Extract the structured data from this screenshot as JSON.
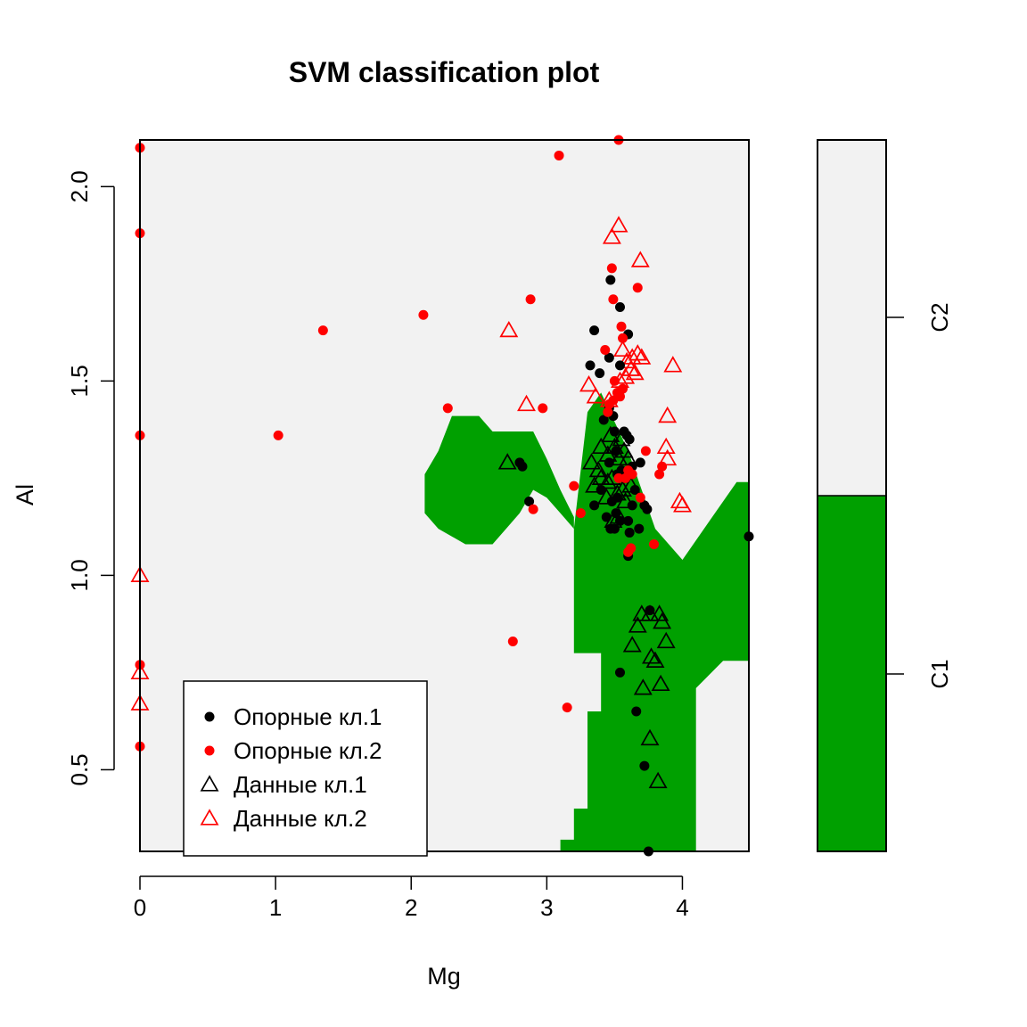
{
  "chart_data": {
    "type": "scatter",
    "title": "SVM classification plot",
    "xlabel": "Mg",
    "ylabel": "Al",
    "xlim": [
      0,
      4.49
    ],
    "ylim": [
      0.29,
      2.12
    ],
    "xticks": [
      {
        "v": 0,
        "label": "0"
      },
      {
        "v": 1,
        "label": "1"
      },
      {
        "v": 2,
        "label": "2"
      },
      {
        "v": 3,
        "label": "3"
      },
      {
        "v": 4,
        "label": "4"
      }
    ],
    "yticks": [
      {
        "v": 0.5,
        "label": "0.5"
      },
      {
        "v": 1.0,
        "label": "1.0"
      },
      {
        "v": 1.5,
        "label": "1.5"
      },
      {
        "v": 2.0,
        "label": "2.0"
      }
    ],
    "colors": {
      "class1_region": "#00a000",
      "class2_region": "#f2f2f2",
      "class1_points": "#000000",
      "class2_points": "#ff0000"
    },
    "decision_region_class1": [
      [
        3.1,
        0.29
      ],
      [
        3.1,
        0.32
      ],
      [
        3.2,
        0.32
      ],
      [
        3.2,
        0.4
      ],
      [
        3.3,
        0.4
      ],
      [
        3.3,
        0.65
      ],
      [
        3.4,
        0.65
      ],
      [
        3.4,
        0.8
      ],
      [
        3.2,
        0.8
      ],
      [
        3.2,
        1.0
      ],
      [
        3.2,
        1.15
      ],
      [
        3.1,
        1.22
      ],
      [
        3.0,
        1.3
      ],
      [
        2.9,
        1.37
      ],
      [
        2.6,
        1.37
      ],
      [
        2.5,
        1.41
      ],
      [
        2.3,
        1.41
      ],
      [
        2.2,
        1.32
      ],
      [
        2.1,
        1.26
      ],
      [
        2.1,
        1.16
      ],
      [
        2.2,
        1.12
      ],
      [
        2.4,
        1.08
      ],
      [
        2.6,
        1.08
      ],
      [
        2.7,
        1.12
      ],
      [
        2.8,
        1.16
      ],
      [
        2.9,
        1.22
      ],
      [
        3.0,
        1.2
      ],
      [
        3.1,
        1.16
      ],
      [
        3.2,
        1.12
      ],
      [
        3.3,
        1.42
      ],
      [
        3.4,
        1.47
      ],
      [
        3.6,
        1.32
      ],
      [
        3.8,
        1.12
      ],
      [
        4.0,
        1.04
      ],
      [
        4.2,
        1.14
      ],
      [
        4.4,
        1.24
      ],
      [
        4.49,
        1.24
      ],
      [
        4.49,
        0.78
      ],
      [
        4.3,
        0.78
      ],
      [
        4.1,
        0.71
      ],
      [
        4.1,
        0.29
      ]
    ],
    "legend": [
      {
        "label": "Опорные кл.1",
        "shape": "dot",
        "class": 1
      },
      {
        "label": "Опорные кл.2",
        "shape": "dot",
        "class": 2
      },
      {
        "label": "Данные кл.1",
        "shape": "triangle",
        "class": 1
      },
      {
        "label": "Данные кл.2",
        "shape": "triangle",
        "class": 2
      }
    ],
    "legend_position": "bottom-left",
    "colorbar": {
      "labels": [
        {
          "label": "C2",
          "class": 2
        },
        {
          "label": "C1",
          "class": 1
        }
      ],
      "split_fraction": 0.5
    },
    "series": [
      {
        "name": "Опорные кл.1",
        "shape": "dot",
        "class": 1,
        "points": [
          [
            3.47,
            1.76
          ],
          [
            3.54,
            1.69
          ],
          [
            3.6,
            1.62
          ],
          [
            3.35,
            1.63
          ],
          [
            3.32,
            1.54
          ],
          [
            3.39,
            1.52
          ],
          [
            3.46,
            1.56
          ],
          [
            3.54,
            1.54
          ],
          [
            3.42,
            1.4
          ],
          [
            3.46,
            1.43
          ],
          [
            3.49,
            1.41
          ],
          [
            3.5,
            1.37
          ],
          [
            3.57,
            1.37
          ],
          [
            3.59,
            1.36
          ],
          [
            3.61,
            1.35
          ],
          [
            3.51,
            1.32
          ],
          [
            3.46,
            1.29
          ],
          [
            3.52,
            1.26
          ],
          [
            3.55,
            1.27
          ],
          [
            3.63,
            1.28
          ],
          [
            3.65,
            1.22
          ],
          [
            3.63,
            1.18
          ],
          [
            3.72,
            1.18
          ],
          [
            3.74,
            1.17
          ],
          [
            3.69,
            1.29
          ],
          [
            3.58,
            1.25
          ],
          [
            3.52,
            1.2
          ],
          [
            3.48,
            1.19
          ],
          [
            3.44,
            1.15
          ],
          [
            3.35,
            1.18
          ],
          [
            3.4,
            1.22
          ],
          [
            3.51,
            1.16
          ],
          [
            3.6,
            1.14
          ],
          [
            3.61,
            1.11
          ],
          [
            3.68,
            1.12
          ],
          [
            3.47,
            1.12
          ],
          [
            3.5,
            1.12
          ],
          [
            3.54,
            1.14
          ],
          [
            3.6,
            1.05
          ],
          [
            2.8,
            1.29
          ],
          [
            2.82,
            1.28
          ],
          [
            2.87,
            1.19
          ],
          [
            4.49,
            1.1
          ],
          [
            3.76,
            0.91
          ],
          [
            3.54,
            0.75
          ],
          [
            3.66,
            0.65
          ],
          [
            3.72,
            0.51
          ],
          [
            3.75,
            0.29
          ]
        ]
      },
      {
        "name": "Опорные кл.2",
        "shape": "dot",
        "class": 2,
        "points": [
          [
            0.0,
            2.1
          ],
          [
            0.0,
            1.88
          ],
          [
            0.0,
            1.36
          ],
          [
            0.0,
            0.77
          ],
          [
            0.0,
            0.56
          ],
          [
            1.35,
            1.63
          ],
          [
            1.02,
            1.36
          ],
          [
            2.09,
            1.67
          ],
          [
            2.27,
            1.43
          ],
          [
            2.88,
            1.71
          ],
          [
            2.97,
            1.43
          ],
          [
            3.09,
            2.08
          ],
          [
            3.53,
            2.12
          ],
          [
            3.48,
            1.79
          ],
          [
            3.49,
            1.71
          ],
          [
            3.67,
            1.74
          ],
          [
            3.55,
            1.64
          ],
          [
            3.56,
            1.61
          ],
          [
            3.43,
            1.58
          ],
          [
            3.5,
            1.5
          ],
          [
            3.52,
            1.47
          ],
          [
            3.56,
            1.48
          ],
          [
            3.54,
            1.46
          ],
          [
            3.46,
            1.44
          ],
          [
            3.49,
            1.45
          ],
          [
            3.45,
            1.42
          ],
          [
            3.73,
            1.32
          ],
          [
            3.6,
            1.27
          ],
          [
            3.63,
            1.26
          ],
          [
            3.58,
            1.25
          ],
          [
            3.53,
            1.25
          ],
          [
            3.85,
            1.28
          ],
          [
            3.83,
            1.26
          ],
          [
            3.2,
            1.23
          ],
          [
            3.25,
            1.16
          ],
          [
            2.9,
            1.17
          ],
          [
            3.69,
            1.2
          ],
          [
            3.62,
            1.07
          ],
          [
            3.6,
            1.06
          ],
          [
            3.79,
            1.08
          ],
          [
            2.75,
            0.83
          ],
          [
            3.15,
            0.66
          ]
        ]
      },
      {
        "name": "Данные кл.1",
        "shape": "triangle",
        "class": 1,
        "points": [
          [
            2.71,
            1.29
          ],
          [
            3.33,
            1.29
          ],
          [
            3.38,
            1.27
          ],
          [
            3.45,
            1.31
          ],
          [
            3.5,
            1.33
          ],
          [
            3.55,
            1.35
          ],
          [
            3.53,
            1.3
          ],
          [
            3.48,
            1.25
          ],
          [
            3.4,
            1.25
          ],
          [
            3.35,
            1.23
          ],
          [
            3.44,
            1.2
          ],
          [
            3.56,
            1.22
          ],
          [
            3.6,
            1.3
          ],
          [
            3.62,
            1.23
          ],
          [
            3.53,
            1.15
          ],
          [
            3.49,
            1.14
          ],
          [
            3.45,
            1.24
          ],
          [
            3.52,
            1.21
          ],
          [
            3.58,
            1.19
          ],
          [
            3.4,
            1.33
          ],
          [
            3.47,
            1.36
          ],
          [
            3.57,
            1.32
          ],
          [
            3.7,
            0.9
          ],
          [
            3.76,
            0.9
          ],
          [
            3.83,
            0.9
          ],
          [
            3.85,
            0.88
          ],
          [
            3.67,
            0.87
          ],
          [
            3.63,
            0.82
          ],
          [
            3.77,
            0.79
          ],
          [
            3.8,
            0.78
          ],
          [
            3.88,
            0.83
          ],
          [
            3.71,
            0.71
          ],
          [
            3.84,
            0.72
          ],
          [
            3.76,
            0.58
          ],
          [
            3.82,
            0.47
          ]
        ]
      },
      {
        "name": "Данные кл.2",
        "shape": "triangle",
        "class": 2,
        "points": [
          [
            3.53,
            1.9
          ],
          [
            3.48,
            1.87
          ],
          [
            3.69,
            1.81
          ],
          [
            2.72,
            1.63
          ],
          [
            3.56,
            1.58
          ],
          [
            3.63,
            1.56
          ],
          [
            3.67,
            1.57
          ],
          [
            3.7,
            1.56
          ],
          [
            3.59,
            1.55
          ],
          [
            3.62,
            1.53
          ],
          [
            3.65,
            1.52
          ],
          [
            3.93,
            1.54
          ],
          [
            3.58,
            1.51
          ],
          [
            3.54,
            1.5
          ],
          [
            3.31,
            1.49
          ],
          [
            3.36,
            1.46
          ],
          [
            2.85,
            1.44
          ],
          [
            3.46,
            1.45
          ],
          [
            3.89,
            1.41
          ],
          [
            3.88,
            1.33
          ],
          [
            3.89,
            1.3
          ],
          [
            3.98,
            1.19
          ],
          [
            4.0,
            1.18
          ],
          [
            0.0,
            1.0
          ],
          [
            0.0,
            0.75
          ],
          [
            0.0,
            0.67
          ]
        ]
      }
    ]
  }
}
